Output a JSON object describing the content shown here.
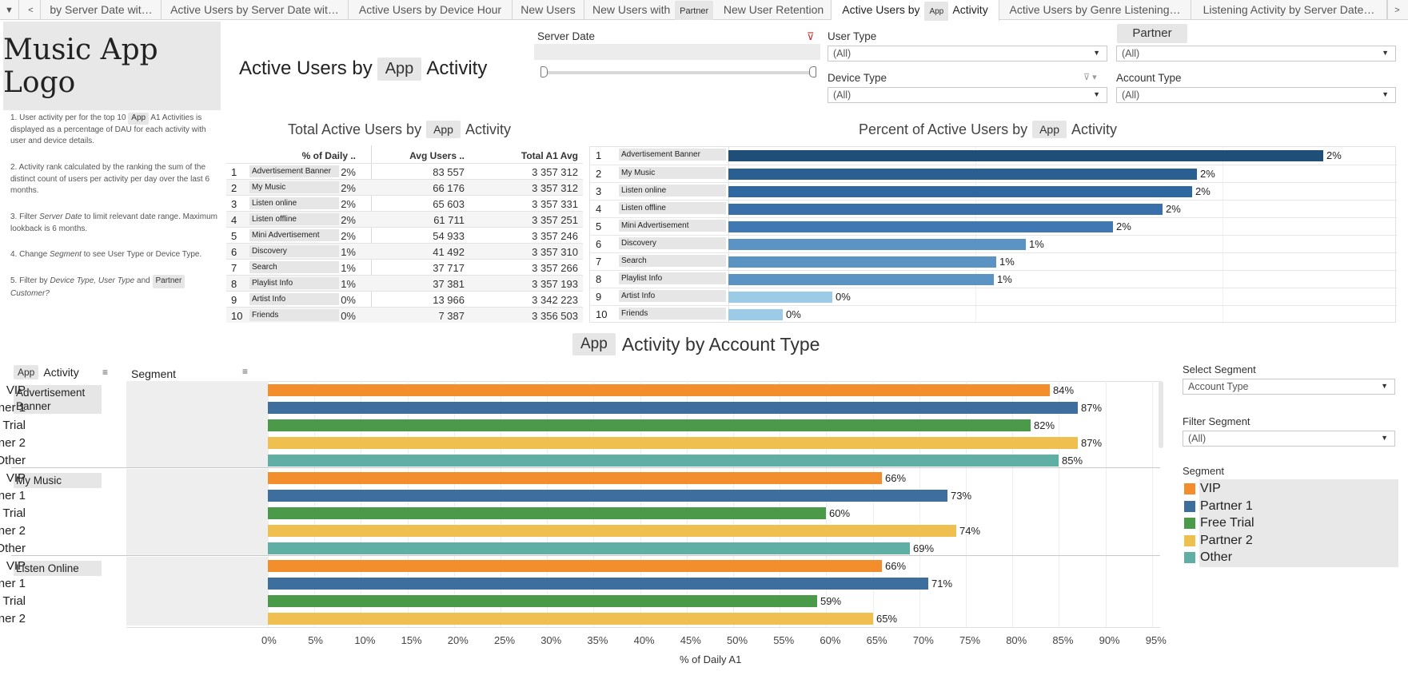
{
  "tabs": [
    "Active Users by Server Date wit…",
    "Active Users by Server Date wit…",
    "Active Users by Device Hour",
    "New Users",
    "New Users with",
    "Partner",
    "New User Retention",
    "Active Users by",
    "App",
    "Activity",
    "Active Users by Genre Listening…",
    "Listening Activity by Server Date…"
  ],
  "tabbar": {
    "first_tab": "by Server Date wit…",
    "menu_icon": "▼",
    "prev_icon": "<",
    "next_icon": ">"
  },
  "logo": "Music App Logo",
  "title": {
    "pre": "Active Users by",
    "pill": "App",
    "post": "Activity"
  },
  "notes": {
    "n1_pre": "1. User activity per for the top 10",
    "n1_pill": "App",
    "n1_post": "A1 Activities is displayed as a percentage of DAU for each activity with user and device details.",
    "n2": "2. Activity rank calculated by the ranking the sum of the distinct count of users per activity per day over the last 6 months.",
    "n3_pre": "3. Filter",
    "n3_em": "Server Date",
    "n3_post": "to limit relevant date range. Maximum lookback is 6 months.",
    "n4_pre": "4. Change",
    "n4_em": "Segment",
    "n4_post": "to see User Type or Device Type.",
    "n5_pre": "5. Filter by",
    "n5_em1": "Device Type, User Type",
    "n5_mid": "and",
    "n5_pill": "Partner",
    "n5_em2": "Customer?"
  },
  "filters": {
    "server_date": "Server Date",
    "user_type": "User Type",
    "user_type_val": "(All)",
    "partner": "Partner",
    "partner_val": "(All)",
    "device_type": "Device Type",
    "device_type_val": "(All)",
    "account_type": "Account Type",
    "account_type_val": "(All)"
  },
  "table_section": {
    "pre": "Total Active Users by",
    "pill": "App",
    "post": "Activity"
  },
  "table_headers": {
    "pct": "% of Daily ..",
    "avg": "Avg Users ..",
    "total": "Total A1 Avg"
  },
  "table_rows": [
    {
      "rank": "1",
      "activity": "Advertisement Banner",
      "pct": "2%",
      "avg": "83 557",
      "total": "3 357 312"
    },
    {
      "rank": "2",
      "activity": "My Music",
      "pct": "2%",
      "avg": "66 176",
      "total": "3 357 312"
    },
    {
      "rank": "3",
      "activity": "Listen online",
      "pct": "2%",
      "avg": "65 603",
      "total": "3 357 331"
    },
    {
      "rank": "4",
      "activity": "Listen offline",
      "pct": "2%",
      "avg": "61 711",
      "total": "3 357 251"
    },
    {
      "rank": "5",
      "activity": "Mini Advertisement",
      "pct": "2%",
      "avg": "54 933",
      "total": "3 357 246"
    },
    {
      "rank": "6",
      "activity": "Discovery",
      "pct": "1%",
      "avg": "41 492",
      "total": "3 357 310"
    },
    {
      "rank": "7",
      "activity": "Search",
      "pct": "1%",
      "avg": "37 717",
      "total": "3 357 266"
    },
    {
      "rank": "8",
      "activity": "Playlist Info",
      "pct": "1%",
      "avg": "37 381",
      "total": "3 357 193"
    },
    {
      "rank": "9",
      "activity": "Artist Info",
      "pct": "0%",
      "avg": "13 966",
      "total": "3 342 223"
    },
    {
      "rank": "10",
      "activity": "Friends",
      "pct": "0%",
      "avg": "7 387",
      "total": "3 356 503"
    }
  ],
  "pct_section": {
    "pre": "Percent of Active Users by",
    "pill": "App",
    "post": "Activity"
  },
  "account_section": {
    "pill": "App",
    "post": "Activity by Account Type"
  },
  "bottom_headers": {
    "pill": "App",
    "activity": "Activity",
    "segment": "Segment"
  },
  "select_segment": {
    "label": "Select Segment",
    "value": "Account Type"
  },
  "filter_segment": {
    "label": "Filter Segment",
    "value": "(All)"
  },
  "legend_title": "Segment",
  "colors": {
    "VIP": "#f28e2b",
    "Partner 1": "#3e6e9e",
    "Free Trial": "#4a9a4a",
    "Partner 2": "#efc04f",
    "Other": "#5fafa4"
  },
  "chart_data": [
    {
      "type": "bar",
      "orientation": "horizontal",
      "categories": [
        "Advertisement Banner",
        "My Music",
        "Listen online",
        "Listen offline",
        "Mini Advertisement",
        "Discovery",
        "Search",
        "Playlist Info",
        "Artist Info",
        "Friends"
      ],
      "values": [
        2.4,
        1.89,
        1.87,
        1.75,
        1.55,
        1.2,
        1.08,
        1.07,
        0.42,
        0.22
      ],
      "data_labels": [
        "2%",
        "2%",
        "2%",
        "2%",
        "2%",
        "1%",
        "1%",
        "1%",
        "0%",
        "0%"
      ],
      "xlim": [
        0,
        2.5
      ]
    },
    {
      "type": "bar",
      "orientation": "horizontal",
      "xlabel": "% of Daily A1",
      "xlim": [
        0,
        97
      ],
      "xticks": [
        "0%",
        "5%",
        "10%",
        "15%",
        "20%",
        "25%",
        "30%",
        "35%",
        "40%",
        "45%",
        "50%",
        "55%",
        "60%",
        "65%",
        "70%",
        "75%",
        "80%",
        "85%",
        "90%",
        "95%"
      ],
      "segments": [
        "VIP",
        "Partner 1",
        "Free Trial",
        "Partner 2",
        "Other"
      ],
      "groups": [
        {
          "name": "Advertisement Banner",
          "bars": [
            {
              "segment": "VIP",
              "value": 84
            },
            {
              "segment": "Partner 1",
              "value": 87
            },
            {
              "segment": "Free Trial",
              "value": 82
            },
            {
              "segment": "Partner 2",
              "value": 87
            },
            {
              "segment": "Other",
              "value": 85
            }
          ]
        },
        {
          "name": "My Music",
          "bars": [
            {
              "segment": "VIP",
              "value": 66
            },
            {
              "segment": "Partner 1",
              "value": 73
            },
            {
              "segment": "Free Trial",
              "value": 60
            },
            {
              "segment": "Partner 2",
              "value": 74
            },
            {
              "segment": "Other",
              "value": 69
            }
          ]
        },
        {
          "name": "Listen Online",
          "bars": [
            {
              "segment": "VIP",
              "value": 66
            },
            {
              "segment": "Partner 1",
              "value": 71
            },
            {
              "segment": "Free Trial",
              "value": 59
            },
            {
              "segment": "Partner 2",
              "value": 65
            }
          ]
        }
      ]
    }
  ]
}
